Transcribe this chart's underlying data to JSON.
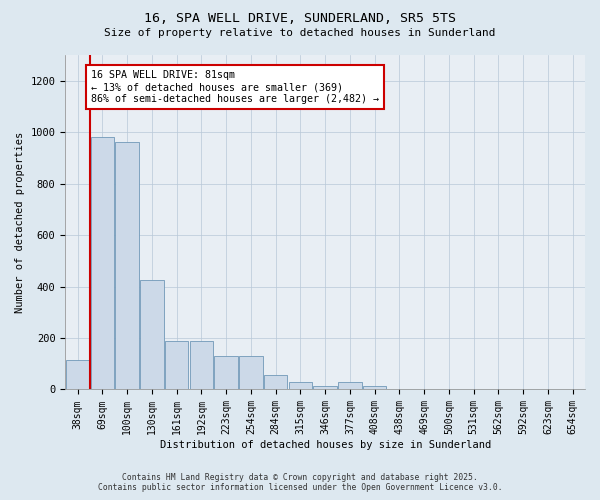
{
  "title1": "16, SPA WELL DRIVE, SUNDERLAND, SR5 5TS",
  "title2": "Size of property relative to detached houses in Sunderland",
  "xlabel": "Distribution of detached houses by size in Sunderland",
  "ylabel": "Number of detached properties",
  "categories": [
    "38sqm",
    "69sqm",
    "100sqm",
    "130sqm",
    "161sqm",
    "192sqm",
    "223sqm",
    "254sqm",
    "284sqm",
    "315sqm",
    "346sqm",
    "377sqm",
    "408sqm",
    "438sqm",
    "469sqm",
    "500sqm",
    "531sqm",
    "562sqm",
    "592sqm",
    "623sqm",
    "654sqm"
  ],
  "values": [
    113,
    980,
    960,
    425,
    190,
    190,
    130,
    130,
    55,
    30,
    13,
    30,
    13,
    2,
    2,
    0,
    2,
    0,
    2,
    0,
    2
  ],
  "bar_color": "#ccd9e8",
  "bar_edge_color": "#7098b8",
  "vline_x": 1.5,
  "vline_color": "#cc0000",
  "annotation_text": "16 SPA WELL DRIVE: 81sqm\n← 13% of detached houses are smaller (369)\n86% of semi-detached houses are larger (2,482) →",
  "annotation_box_color": "#ffffff",
  "annotation_box_edge": "#cc0000",
  "ylim": [
    0,
    1300
  ],
  "yticks": [
    0,
    200,
    400,
    600,
    800,
    1000,
    1200
  ],
  "footer1": "Contains HM Land Registry data © Crown copyright and database right 2025.",
  "footer2": "Contains public sector information licensed under the Open Government Licence v3.0.",
  "bg_color": "#dde8f0",
  "plot_bg_color": "#e8eef4"
}
